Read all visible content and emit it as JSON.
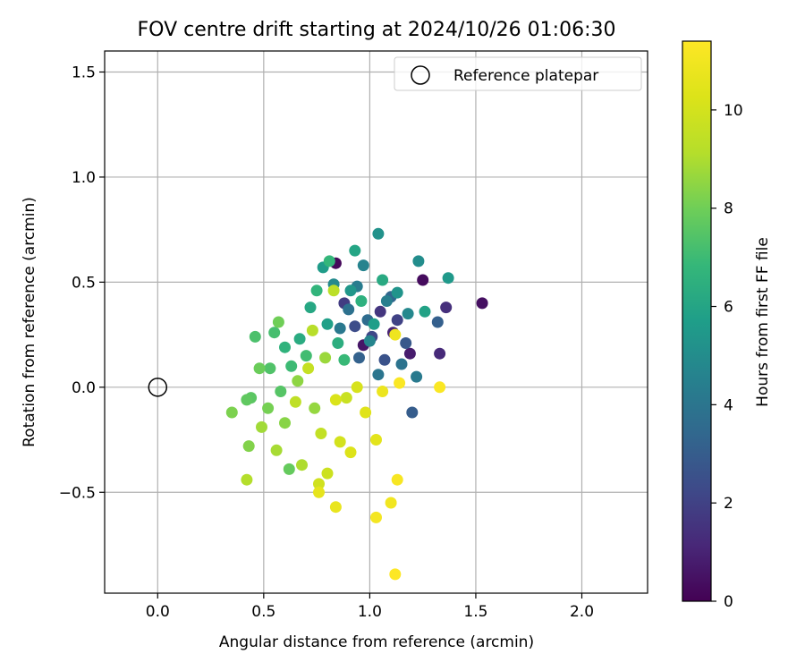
{
  "chart_data": {
    "type": "scatter",
    "title": "FOV centre drift starting at 2024/10/26 01:06:30",
    "xlabel": "Angular distance from reference (arcmin)",
    "ylabel": "Rotation from reference (arcmin)",
    "xlim": [
      -0.25,
      2.31
    ],
    "ylim": [
      -0.98,
      1.6
    ],
    "x_ticks": [
      0.0,
      0.5,
      1.0,
      1.5,
      2.0
    ],
    "x_tick_labels": [
      "0.0",
      "0.5",
      "1.0",
      "1.5",
      "2.0"
    ],
    "y_ticks": [
      -0.5,
      0.0,
      0.5,
      1.0,
      1.5
    ],
    "y_tick_labels": [
      "−0.5",
      "0.0",
      "0.5",
      "1.0",
      "1.5"
    ],
    "grid": true,
    "legend": {
      "placement": "top-right",
      "entries": [
        "Reference platepar"
      ]
    },
    "reference_point": {
      "x": 0.0,
      "y": 0.0,
      "name": "Reference platepar"
    },
    "colorbar": {
      "label": "Hours from first FF file",
      "colormap": "viridis",
      "range": [
        0,
        11.4
      ],
      "ticks": [
        0,
        2,
        4,
        6,
        8,
        10
      ],
      "tick_labels": [
        "0",
        "2",
        "4",
        "6",
        "8",
        "10"
      ]
    },
    "points_note_hours_range": [
      0,
      11.4
    ],
    "points": [
      [
        0.84,
        0.59,
        0.2
      ],
      [
        0.97,
        0.2,
        0.6
      ],
      [
        1.19,
        0.16,
        0.8
      ],
      [
        1.11,
        0.26,
        1.0
      ],
      [
        1.33,
        0.16,
        1.2
      ],
      [
        1.36,
        0.38,
        1.4
      ],
      [
        1.25,
        0.51,
        0.3
      ],
      [
        1.05,
        0.36,
        1.6
      ],
      [
        0.88,
        0.4,
        1.8
      ],
      [
        1.53,
        0.4,
        0.4
      ],
      [
        1.13,
        0.32,
        2.0
      ],
      [
        1.01,
        0.24,
        2.2
      ],
      [
        0.93,
        0.29,
        2.4
      ],
      [
        1.07,
        0.13,
        2.6
      ],
      [
        1.17,
        0.21,
        2.8
      ],
      [
        1.2,
        -0.12,
        3.0
      ],
      [
        1.32,
        0.31,
        3.1
      ],
      [
        0.95,
        0.14,
        3.2
      ],
      [
        1.1,
        0.43,
        3.4
      ],
      [
        0.99,
        0.32,
        3.6
      ],
      [
        0.9,
        0.37,
        3.8
      ],
      [
        1.15,
        0.11,
        3.9
      ],
      [
        1.04,
        0.06,
        4.0
      ],
      [
        0.86,
        0.28,
        4.1
      ],
      [
        1.22,
        0.05,
        4.2
      ],
      [
        0.94,
        0.48,
        4.3
      ],
      [
        1.08,
        0.41,
        4.4
      ],
      [
        0.97,
        0.58,
        4.6
      ],
      [
        1.0,
        0.22,
        4.7
      ],
      [
        1.18,
        0.35,
        4.8
      ],
      [
        0.83,
        0.49,
        4.9
      ],
      [
        1.23,
        0.6,
        5.0
      ],
      [
        1.04,
        0.73,
        5.2
      ],
      [
        1.13,
        0.45,
        5.3
      ],
      [
        0.91,
        0.46,
        5.4
      ],
      [
        1.37,
        0.52,
        5.5
      ],
      [
        0.78,
        0.57,
        5.6
      ],
      [
        1.02,
        0.3,
        5.7
      ],
      [
        0.8,
        0.3,
        5.8
      ],
      [
        1.26,
        0.36,
        5.9
      ],
      [
        0.93,
        0.65,
        6.0
      ],
      [
        0.72,
        0.38,
        6.1
      ],
      [
        1.06,
        0.51,
        6.2
      ],
      [
        0.67,
        0.23,
        6.3
      ],
      [
        0.85,
        0.21,
        6.4
      ],
      [
        0.96,
        0.41,
        6.5
      ],
      [
        0.6,
        0.19,
        6.6
      ],
      [
        0.75,
        0.46,
        6.7
      ],
      [
        0.81,
        0.6,
        6.8
      ],
      [
        0.88,
        0.13,
        6.9
      ],
      [
        0.63,
        0.1,
        7.0
      ],
      [
        0.7,
        0.15,
        7.1
      ],
      [
        0.55,
        0.26,
        7.2
      ],
      [
        0.46,
        0.24,
        7.3
      ],
      [
        0.53,
        0.09,
        7.4
      ],
      [
        0.58,
        -0.02,
        7.5
      ],
      [
        0.44,
        -0.05,
        7.6
      ],
      [
        0.42,
        -0.06,
        7.7
      ],
      [
        0.62,
        -0.39,
        7.8
      ],
      [
        0.48,
        0.09,
        7.9
      ],
      [
        0.57,
        0.31,
        8.0
      ],
      [
        0.52,
        -0.1,
        8.1
      ],
      [
        0.35,
        -0.12,
        8.2
      ],
      [
        0.43,
        -0.28,
        8.3
      ],
      [
        0.6,
        -0.17,
        8.4
      ],
      [
        0.66,
        0.03,
        8.5
      ],
      [
        0.74,
        -0.1,
        8.6
      ],
      [
        0.79,
        0.14,
        8.7
      ],
      [
        0.49,
        -0.19,
        8.8
      ],
      [
        0.56,
        -0.3,
        8.9
      ],
      [
        0.68,
        -0.37,
        9.0
      ],
      [
        0.42,
        -0.44,
        9.1
      ],
      [
        0.73,
        0.27,
        9.2
      ],
      [
        0.83,
        0.46,
        9.3
      ],
      [
        0.65,
        -0.07,
        9.4
      ],
      [
        0.77,
        -0.22,
        9.5
      ],
      [
        0.71,
        0.09,
        9.6
      ],
      [
        0.89,
        -0.05,
        9.7
      ],
      [
        0.8,
        -0.41,
        9.8
      ],
      [
        0.76,
        -0.46,
        9.9
      ],
      [
        0.86,
        -0.26,
        10.0
      ],
      [
        0.94,
        0.0,
        10.1
      ],
      [
        0.84,
        -0.06,
        10.2
      ],
      [
        0.91,
        -0.31,
        10.3
      ],
      [
        0.98,
        -0.12,
        10.4
      ],
      [
        1.03,
        -0.25,
        10.5
      ],
      [
        0.76,
        -0.5,
        10.6
      ],
      [
        0.84,
        -0.57,
        10.7
      ],
      [
        1.06,
        -0.02,
        10.8
      ],
      [
        1.12,
        0.25,
        10.9
      ],
      [
        1.1,
        -0.55,
        11.0
      ],
      [
        1.03,
        -0.62,
        11.1
      ],
      [
        1.13,
        -0.44,
        11.2
      ],
      [
        1.14,
        0.02,
        11.3
      ],
      [
        1.33,
        0.0,
        11.3
      ],
      [
        1.12,
        -0.89,
        11.4
      ]
    ]
  }
}
